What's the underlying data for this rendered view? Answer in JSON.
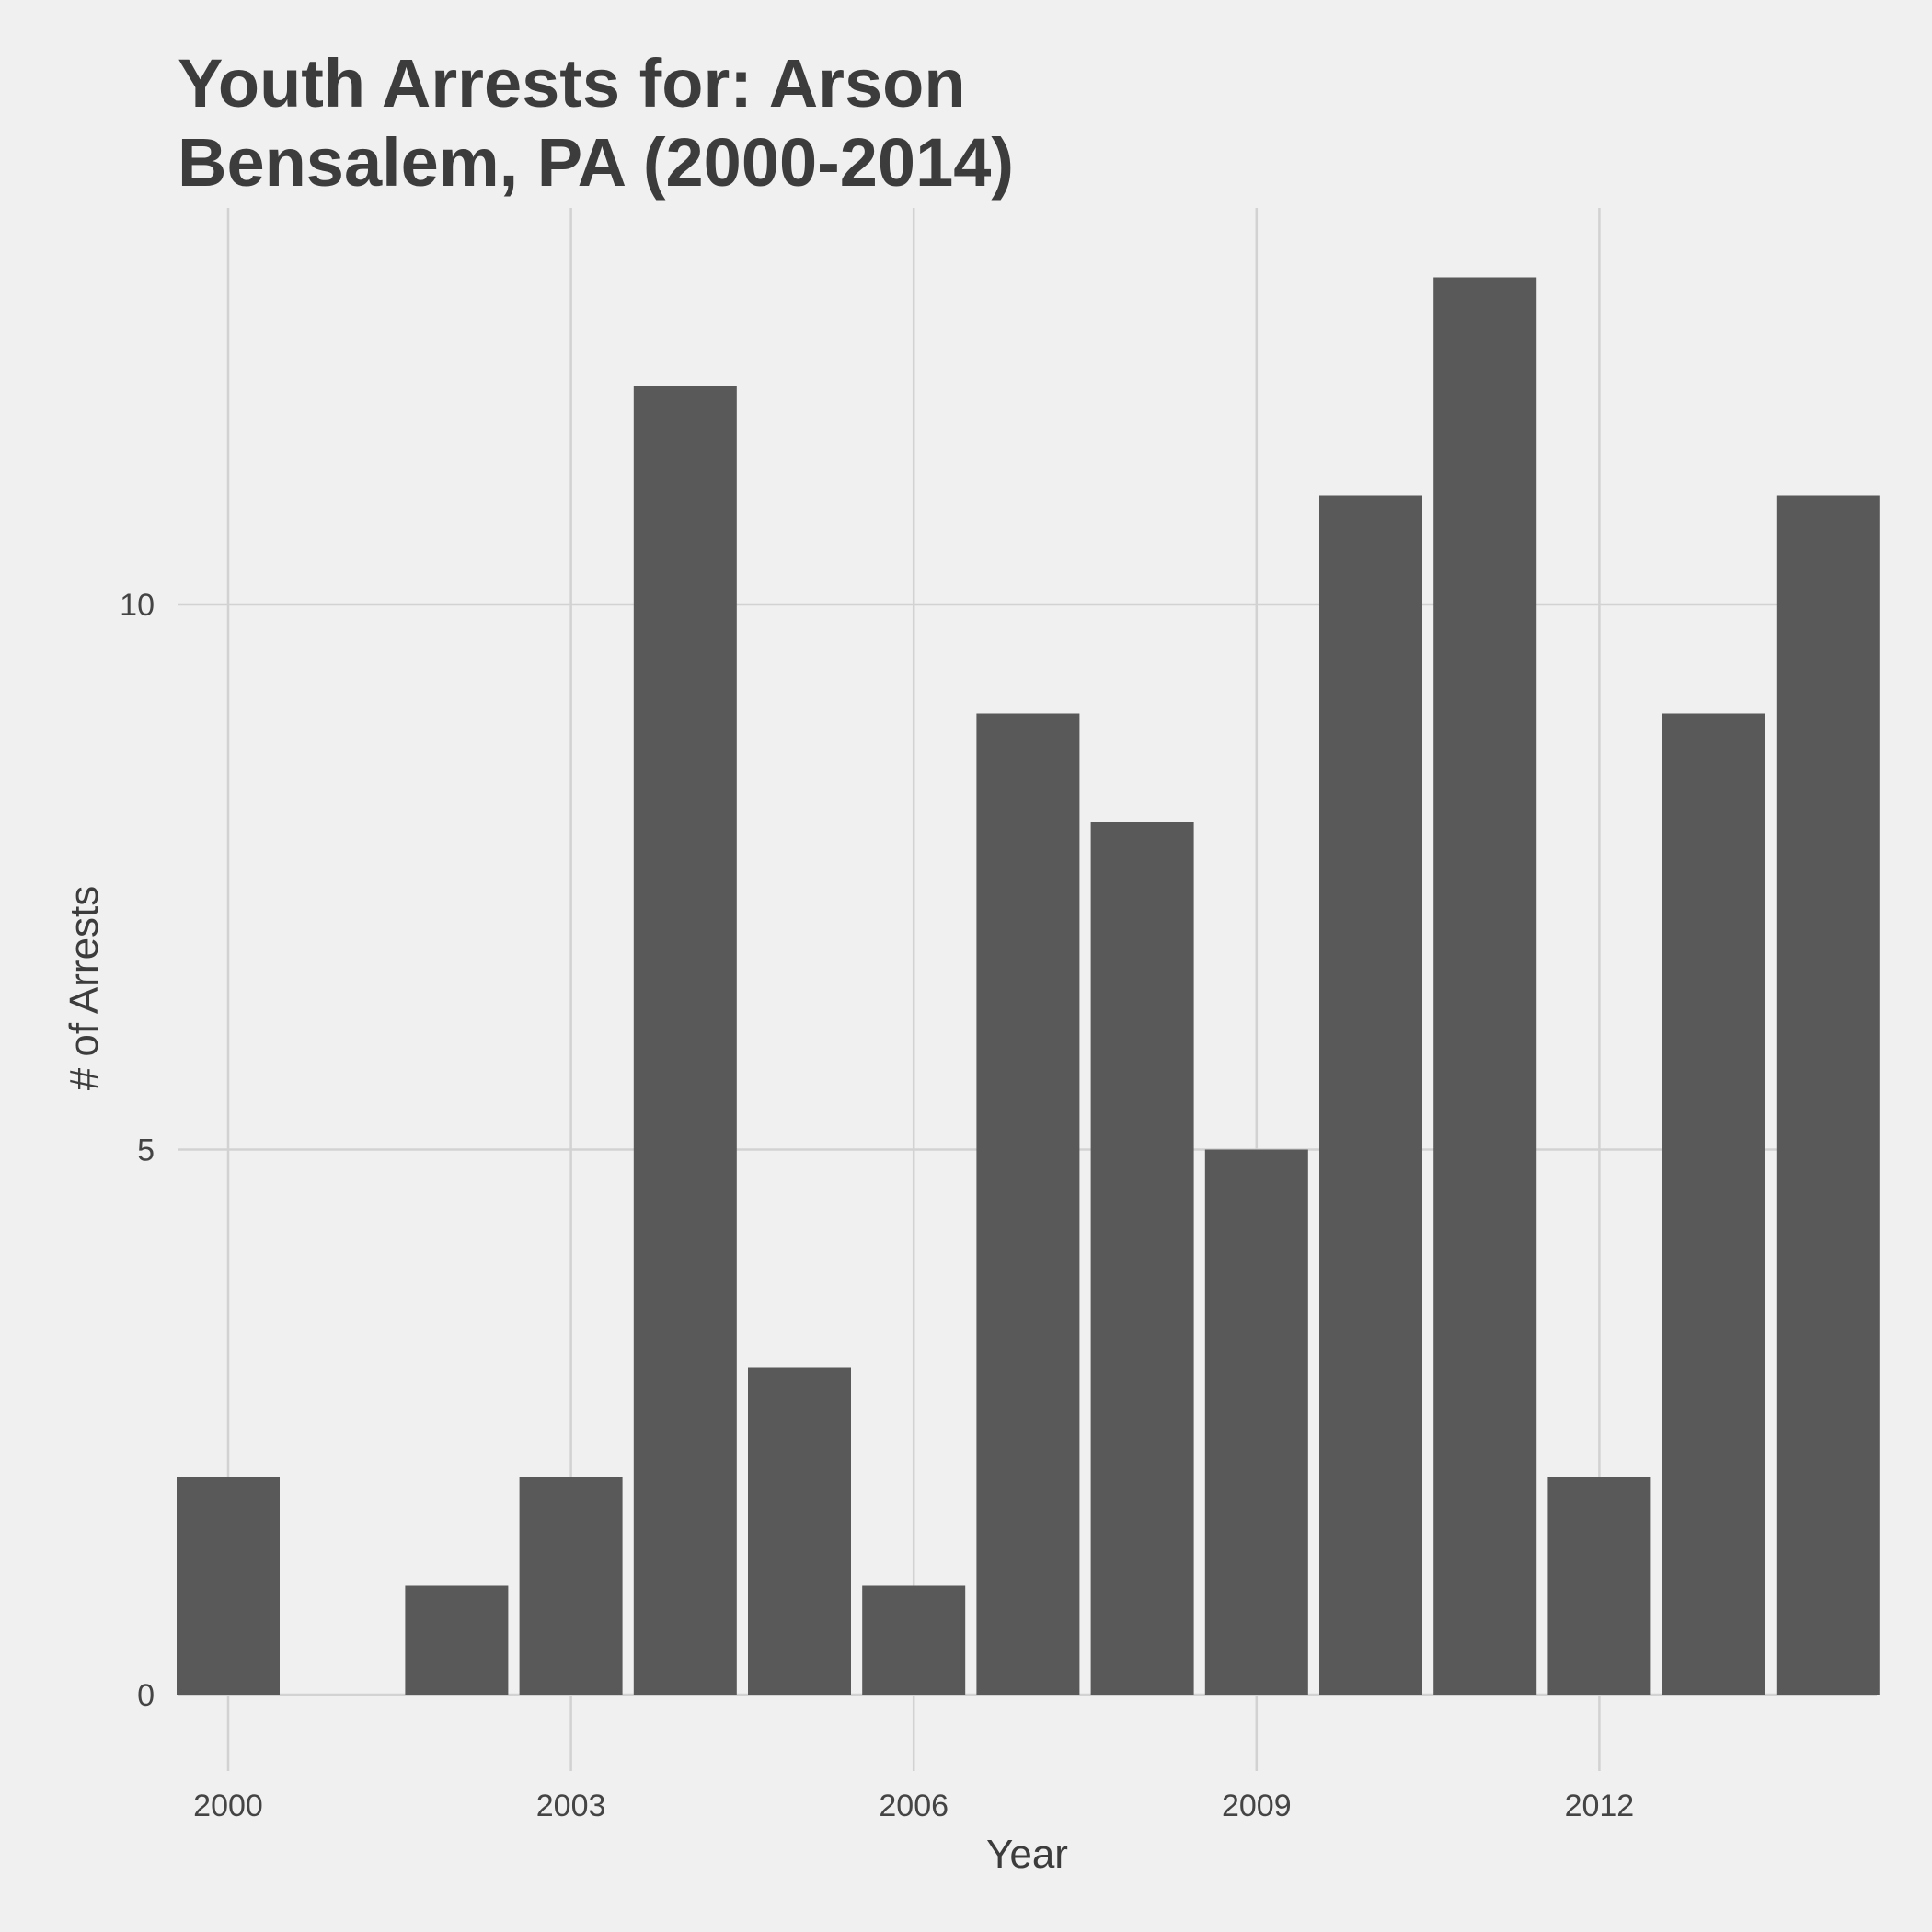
{
  "chart_data": {
    "type": "bar",
    "title": "Youth Arrests for: Arson",
    "subtitle": "Bensalem, PA (2000-2014)",
    "xlabel": "Year",
    "ylabel": "# of Arrests",
    "categories": [
      2000,
      2001,
      2002,
      2003,
      2004,
      2005,
      2006,
      2007,
      2008,
      2009,
      2010,
      2011,
      2012,
      2013,
      2014
    ],
    "values": [
      2,
      0,
      1,
      2,
      12,
      3,
      1,
      9,
      8,
      5,
      11,
      13,
      2,
      9,
      11
    ],
    "x_ticks": [
      "2000",
      "2003",
      "2006",
      "2009",
      "2012"
    ],
    "y_ticks": [
      "0",
      "5",
      "10"
    ],
    "ylim": [
      0,
      13.6
    ],
    "grid": true,
    "bar_color": "#595959",
    "grid_color": "#d2d2d2",
    "background": "#f0f0f0"
  }
}
